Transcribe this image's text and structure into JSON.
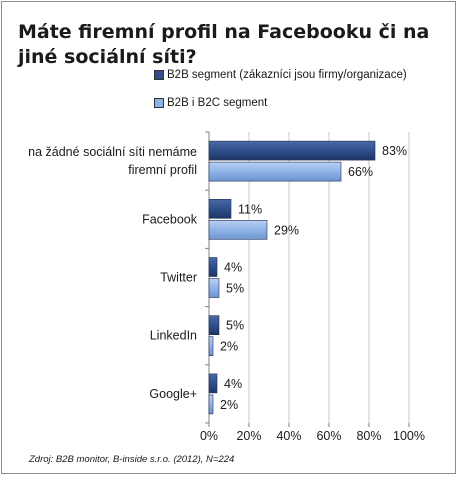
{
  "chart_data": {
    "type": "bar",
    "orientation": "horizontal",
    "title": "Máte firemní profil na Facebooku či na jiné sociální síti?",
    "categories": [
      [
        "na žádné sociální síti nemáme",
        "firemní profil"
      ],
      [
        "Facebook"
      ],
      [
        "Twitter"
      ],
      [
        "LinkedIn"
      ],
      [
        "Google+"
      ]
    ],
    "series": [
      {
        "name": "B2B segment (zákazníci jsou firmy/organizace)",
        "color": "#2e4f8a",
        "values": [
          83,
          11,
          4,
          5,
          4
        ]
      },
      {
        "name": "B2B i B2C segment",
        "color": "#8fb3e8",
        "values": [
          66,
          29,
          5,
          2,
          2
        ]
      }
    ],
    "data_labels": [
      [
        "83%",
        "11%",
        "4%",
        "5%",
        "4%"
      ],
      [
        "66%",
        "29%",
        "5%",
        "2%",
        "2%"
      ]
    ],
    "xlim": [
      0,
      100
    ],
    "xticks": [
      "0%",
      "20%",
      "40%",
      "60%",
      "80%",
      "100%"
    ],
    "grid": "vertical",
    "legend_position": "top"
  },
  "source_text": "Zdroj: B2B monitor, B-inside s.r.o. (2012), N=224"
}
